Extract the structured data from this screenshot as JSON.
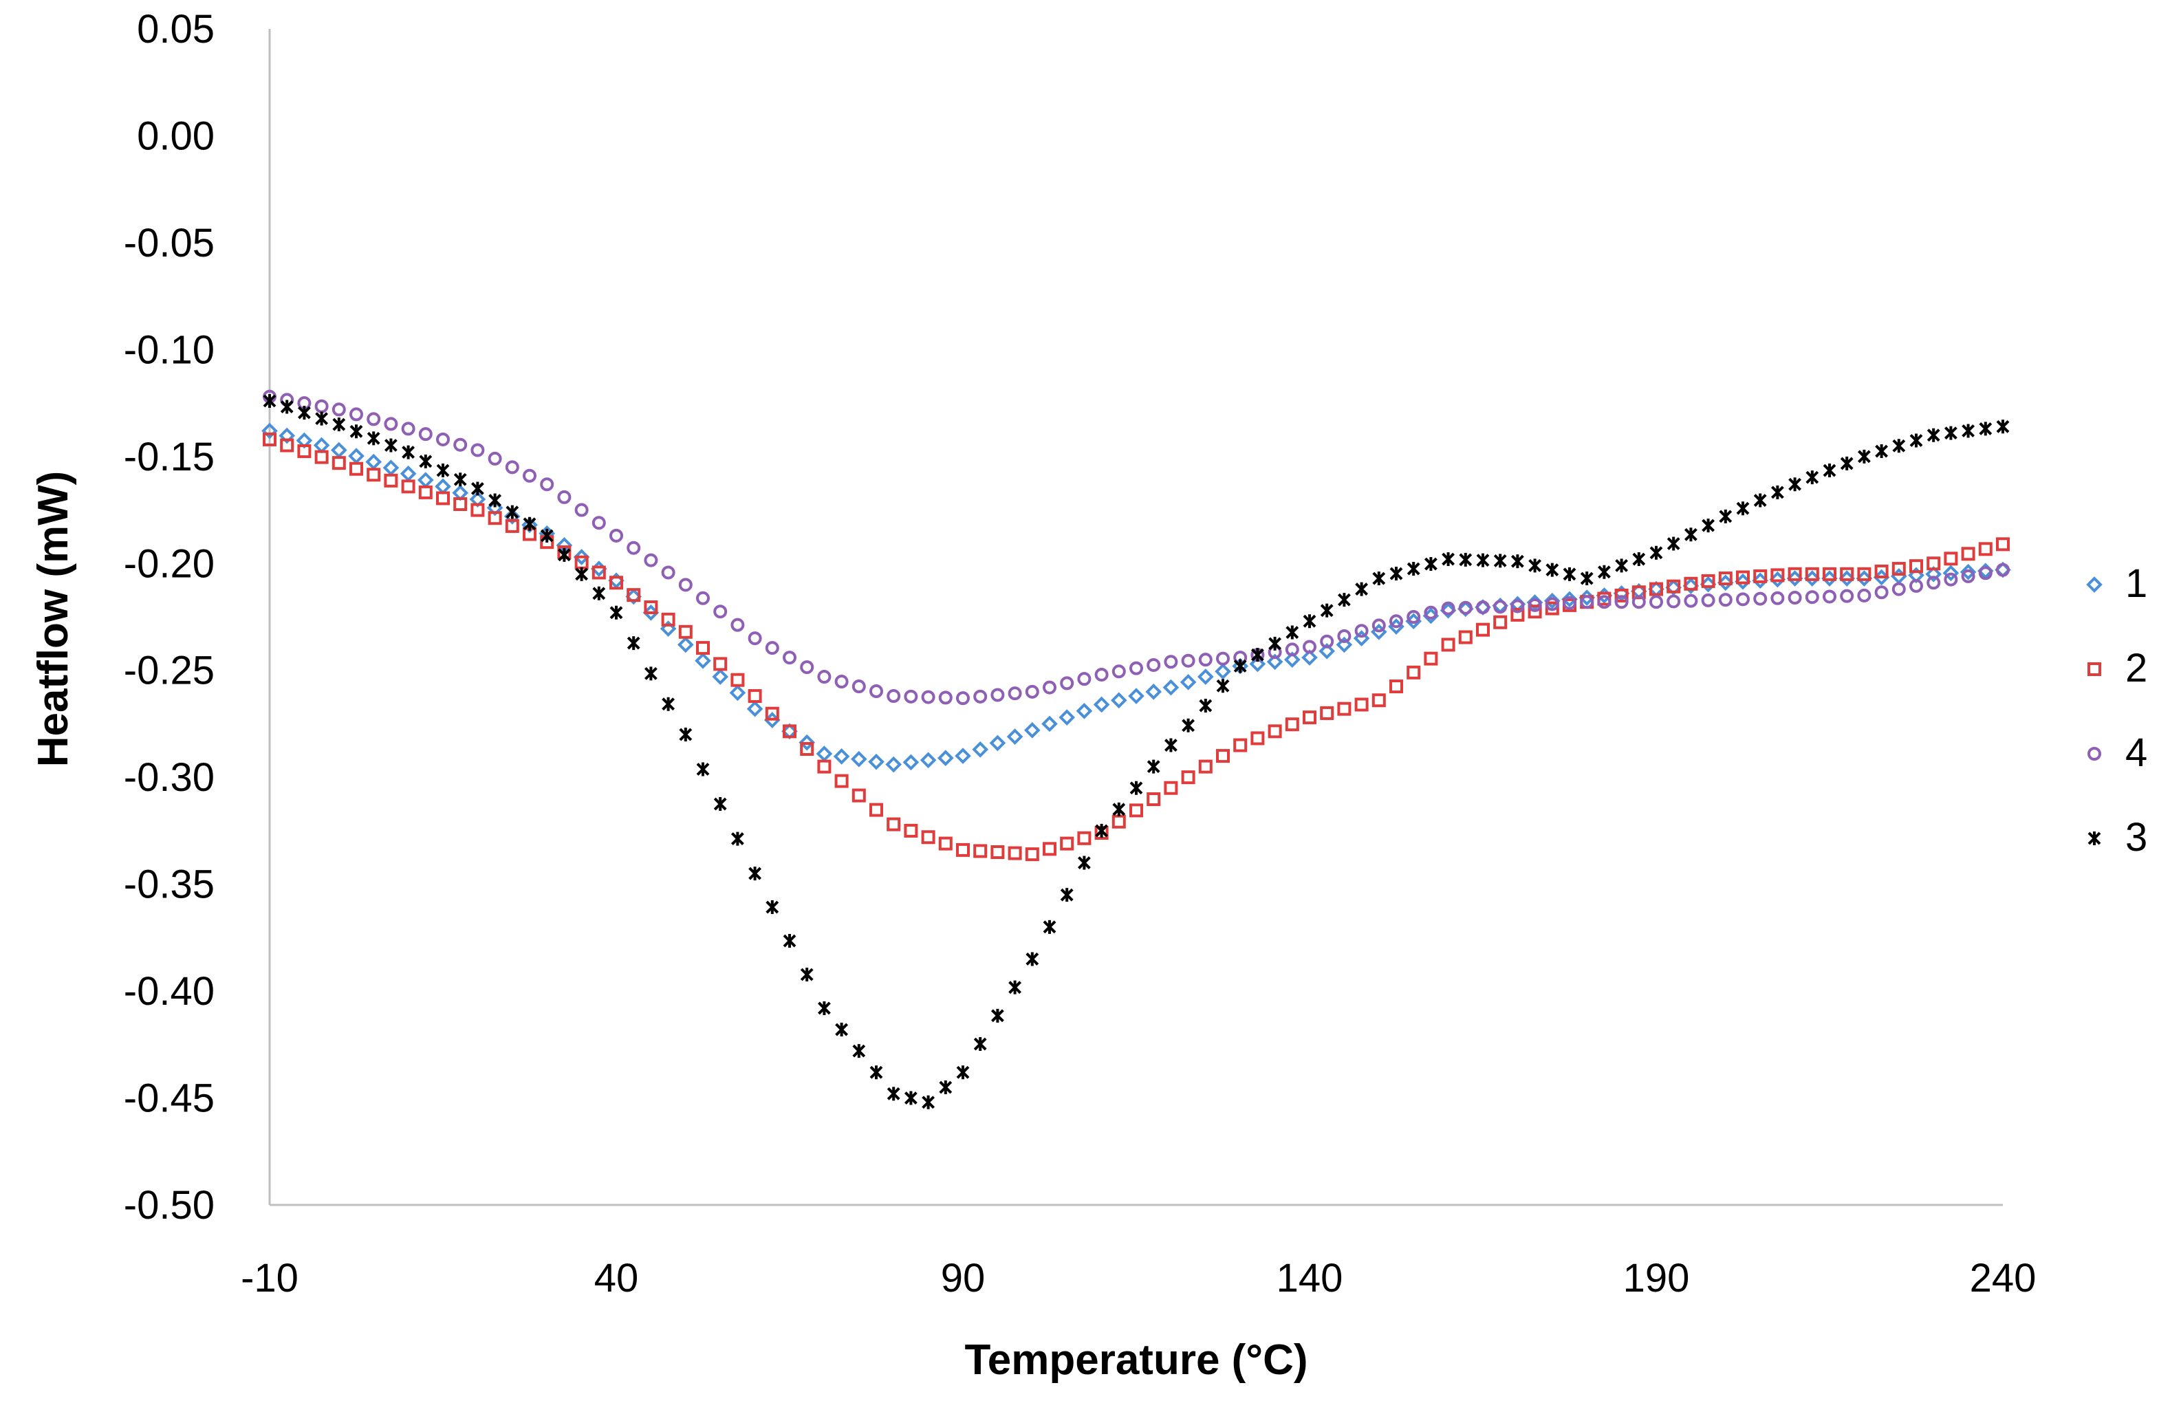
{
  "chart_data": {
    "type": "scatter",
    "title": "",
    "xlabel": "Temperature (°C)",
    "ylabel": "Heatflow (mW)",
    "xlim": [
      -10,
      240
    ],
    "ylim": [
      -0.5,
      0.05
    ],
    "x_ticks": [
      "-10",
      "40",
      "90",
      "140",
      "190",
      "240"
    ],
    "y_ticks": [
      "0.05",
      "0.00",
      "-0.05",
      "-0.10",
      "-0.15",
      "-0.20",
      "-0.25",
      "-0.30",
      "-0.35",
      "-0.40",
      "-0.45",
      "-0.50"
    ],
    "grid": false,
    "legend_position": "right",
    "series": [
      {
        "name": "1",
        "marker": "diamond",
        "color": "#4a90d9",
        "points": [
          [
            -10,
            -0.138
          ],
          [
            0,
            -0.147
          ],
          [
            10,
            -0.158
          ],
          [
            20,
            -0.17
          ],
          [
            30,
            -0.186
          ],
          [
            40,
            -0.208
          ],
          [
            50,
            -0.238
          ],
          [
            60,
            -0.268
          ],
          [
            70,
            -0.289
          ],
          [
            80,
            -0.294
          ],
          [
            90,
            -0.29
          ],
          [
            100,
            -0.278
          ],
          [
            110,
            -0.266
          ],
          [
            120,
            -0.258
          ],
          [
            130,
            -0.248
          ],
          [
            140,
            -0.244
          ],
          [
            150,
            -0.232
          ],
          [
            160,
            -0.222
          ],
          [
            170,
            -0.219
          ],
          [
            180,
            -0.216
          ],
          [
            190,
            -0.212
          ],
          [
            200,
            -0.209
          ],
          [
            210,
            -0.207
          ],
          [
            220,
            -0.207
          ],
          [
            230,
            -0.205
          ],
          [
            240,
            -0.203
          ]
        ]
      },
      {
        "name": "2",
        "marker": "square",
        "color": "#e03c3c",
        "points": [
          [
            -10,
            -0.142
          ],
          [
            0,
            -0.153
          ],
          [
            10,
            -0.164
          ],
          [
            20,
            -0.175
          ],
          [
            30,
            -0.19
          ],
          [
            40,
            -0.209
          ],
          [
            50,
            -0.232
          ],
          [
            60,
            -0.262
          ],
          [
            70,
            -0.295
          ],
          [
            80,
            -0.322
          ],
          [
            90,
            -0.334
          ],
          [
            100,
            -0.336
          ],
          [
            110,
            -0.326
          ],
          [
            120,
            -0.305
          ],
          [
            130,
            -0.285
          ],
          [
            140,
            -0.272
          ],
          [
            150,
            -0.264
          ],
          [
            160,
            -0.238
          ],
          [
            170,
            -0.224
          ],
          [
            180,
            -0.218
          ],
          [
            190,
            -0.212
          ],
          [
            200,
            -0.207
          ],
          [
            210,
            -0.205
          ],
          [
            220,
            -0.205
          ],
          [
            230,
            -0.2
          ],
          [
            240,
            -0.191
          ]
        ]
      },
      {
        "name": "4",
        "marker": "circle",
        "color": "#8e5fb5",
        "points": [
          [
            -10,
            -0.122
          ],
          [
            0,
            -0.128
          ],
          [
            10,
            -0.137
          ],
          [
            20,
            -0.147
          ],
          [
            30,
            -0.163
          ],
          [
            40,
            -0.187
          ],
          [
            50,
            -0.21
          ],
          [
            60,
            -0.235
          ],
          [
            70,
            -0.253
          ],
          [
            80,
            -0.262
          ],
          [
            90,
            -0.263
          ],
          [
            100,
            -0.26
          ],
          [
            110,
            -0.252
          ],
          [
            120,
            -0.246
          ],
          [
            130,
            -0.244
          ],
          [
            140,
            -0.239
          ],
          [
            150,
            -0.229
          ],
          [
            160,
            -0.221
          ],
          [
            170,
            -0.22
          ],
          [
            180,
            -0.218
          ],
          [
            190,
            -0.218
          ],
          [
            200,
            -0.217
          ],
          [
            210,
            -0.216
          ],
          [
            220,
            -0.215
          ],
          [
            230,
            -0.209
          ],
          [
            240,
            -0.203
          ]
        ]
      },
      {
        "name": "3",
        "marker": "asterisk",
        "color": "#000000",
        "points": [
          [
            -10,
            -0.124
          ],
          [
            0,
            -0.135
          ],
          [
            10,
            -0.148
          ],
          [
            20,
            -0.165
          ],
          [
            30,
            -0.187
          ],
          [
            40,
            -0.223
          ],
          [
            50,
            -0.28
          ],
          [
            60,
            -0.345
          ],
          [
            70,
            -0.408
          ],
          [
            80,
            -0.448
          ],
          [
            85,
            -0.452
          ],
          [
            90,
            -0.438
          ],
          [
            100,
            -0.385
          ],
          [
            110,
            -0.325
          ],
          [
            120,
            -0.285
          ],
          [
            130,
            -0.248
          ],
          [
            140,
            -0.227
          ],
          [
            150,
            -0.207
          ],
          [
            160,
            -0.198
          ],
          [
            170,
            -0.199
          ],
          [
            180,
            -0.207
          ],
          [
            190,
            -0.195
          ],
          [
            200,
            -0.178
          ],
          [
            210,
            -0.163
          ],
          [
            220,
            -0.15
          ],
          [
            230,
            -0.14
          ],
          [
            240,
            -0.136
          ]
        ]
      }
    ]
  }
}
